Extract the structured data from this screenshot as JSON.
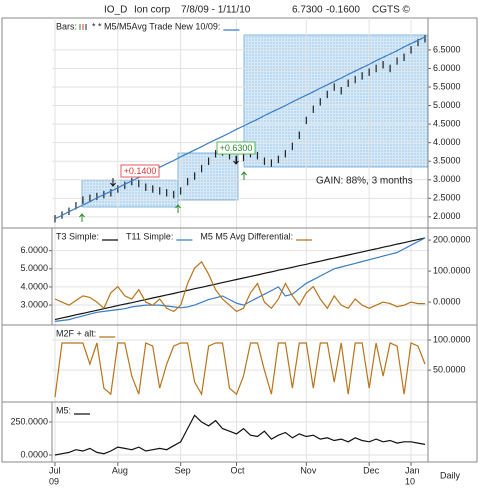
{
  "header": {
    "symbol": "IO_D",
    "name": "Ion corp",
    "dates": "7/8/09 - 1/11/10",
    "last": "6.7300",
    "change": "-0.1600",
    "source": "CGTS ©"
  },
  "chart_data": [
    {
      "type": "range-bar",
      "axis_side": "right",
      "grid": true,
      "annotations": [
        "+0.1400",
        "+0.6300",
        "GAIN: 88%, 3 months"
      ],
      "series": [
        {
          "name": "Bars:",
          "color": "#222",
          "high": [
            2.05,
            2.15,
            2.25,
            2.4,
            2.55,
            2.6,
            2.65,
            2.7,
            2.75,
            2.85,
            2.95,
            3.05,
            3.0,
            2.9,
            2.85,
            2.8,
            2.75,
            2.7,
            2.8,
            3.05,
            3.2,
            3.4,
            3.6,
            3.8,
            3.85,
            3.75,
            3.65,
            3.7,
            3.8,
            3.75,
            3.6,
            3.55,
            3.65,
            3.8,
            4.0,
            4.3,
            4.7,
            5.0,
            5.2,
            5.4,
            5.6,
            5.5,
            5.7,
            5.8,
            5.9,
            6.0,
            6.1,
            6.2,
            6.1,
            6.3,
            6.4,
            6.6,
            6.8,
            6.9
          ],
          "low": [
            1.85,
            1.95,
            2.05,
            2.2,
            2.35,
            2.4,
            2.45,
            2.5,
            2.55,
            2.65,
            2.75,
            2.85,
            2.8,
            2.7,
            2.65,
            2.6,
            2.55,
            2.5,
            2.6,
            2.85,
            3.0,
            3.2,
            3.4,
            3.6,
            3.65,
            3.55,
            3.45,
            3.5,
            3.6,
            3.55,
            3.4,
            3.35,
            3.45,
            3.6,
            3.8,
            4.1,
            4.5,
            4.8,
            5.0,
            5.2,
            5.4,
            5.3,
            5.5,
            5.6,
            5.7,
            5.8,
            5.9,
            6.0,
            5.9,
            6.1,
            6.2,
            6.4,
            6.6,
            6.7
          ]
        },
        {
          "name": "* * M5/M5Avg Trade New 10/09:",
          "color": "#3a7dc4",
          "values": [
            1.95,
            2.04,
            2.14,
            2.23,
            2.32,
            2.41,
            2.51,
            2.6,
            2.69,
            2.78,
            2.88,
            2.97,
            3.06,
            3.15,
            3.25,
            3.34,
            3.43,
            3.52,
            3.62,
            3.71,
            3.8,
            3.89,
            3.99,
            4.08,
            4.17,
            4.26,
            4.36,
            4.45,
            4.54,
            4.63,
            4.73,
            4.82,
            4.91,
            5.0,
            5.1,
            5.19,
            5.28,
            5.37,
            5.47,
            5.56,
            5.65,
            5.74,
            5.84,
            5.93,
            6.02,
            6.11,
            6.21,
            6.3,
            6.39,
            6.48,
            6.58,
            6.67,
            6.76,
            6.85
          ]
        }
      ],
      "ylim": [
        1.7,
        7.36
      ],
      "yticks": [
        {
          "value": 2,
          "label": "2.0000"
        },
        {
          "value": 2.5,
          "label": "2.5000"
        },
        {
          "value": 3,
          "label": "3.0000"
        },
        {
          "value": 3.5,
          "label": "3.5000"
        },
        {
          "value": 4,
          "label": "4.0000"
        },
        {
          "value": 4.5,
          "label": "4.5000"
        },
        {
          "value": 5,
          "label": "5.0000"
        },
        {
          "value": 5.5,
          "label": "5.5000"
        },
        {
          "value": 6,
          "label": "6.0000"
        },
        {
          "value": 6.5,
          "label": "6.5000"
        }
      ]
    },
    {
      "type": "line",
      "axis_side": "left",
      "grid": true,
      "series": [
        {
          "name": "T3 Simple:",
          "color": "#111",
          "values": [
            2.2,
            2.29,
            2.37,
            2.46,
            2.54,
            2.63,
            2.71,
            2.8,
            2.88,
            2.97,
            3.05,
            3.13,
            3.22,
            3.3,
            3.39,
            3.47,
            3.56,
            3.64,
            3.73,
            3.81,
            3.9,
            3.98,
            4.07,
            4.15,
            4.24,
            4.32,
            4.41,
            4.49,
            4.58,
            4.66,
            4.75,
            4.83,
            4.92,
            5.0,
            5.08,
            5.17,
            5.25,
            5.34,
            5.42,
            5.51,
            5.59,
            5.68,
            5.76,
            5.85,
            5.93,
            6.02,
            6.1,
            6.19,
            6.27,
            6.36,
            6.44,
            6.53,
            6.61,
            6.7
          ]
        },
        {
          "name": "T11 Simple:",
          "color": "#3a7dc4",
          "values": [
            2.1,
            2.15,
            2.2,
            2.3,
            2.4,
            2.5,
            2.6,
            2.65,
            2.7,
            2.75,
            2.8,
            2.9,
            2.95,
            3.0,
            3.0,
            3.0,
            2.95,
            2.9,
            2.85,
            2.9,
            3.0,
            3.15,
            3.3,
            3.4,
            3.5,
            3.3,
            3.1,
            3.0,
            3.2,
            3.4,
            3.6,
            3.8,
            4.0,
            3.5,
            3.6,
            3.9,
            4.2,
            4.4,
            4.6,
            4.8,
            5.0,
            5.1,
            5.2,
            5.3,
            5.4,
            5.5,
            5.6,
            5.7,
            5.8,
            5.9,
            6.1,
            6.3,
            6.5,
            6.7
          ]
        },
        {
          "name": "M5 M5 Avg Differential:",
          "color": "#b8741a",
          "axis": "y2",
          "values": [
            10,
            0,
            -10,
            5,
            20,
            15,
            0,
            -20,
            30,
            50,
            20,
            10,
            40,
            0,
            -10,
            10,
            -20,
            -30,
            -10,
            60,
            110,
            130,
            90,
            40,
            10,
            -10,
            -30,
            -20,
            30,
            60,
            0,
            -20,
            10,
            60,
            20,
            -10,
            30,
            50,
            10,
            -20,
            20,
            -10,
            -20,
            10,
            -10,
            -20,
            -10,
            0,
            -5,
            -15,
            -10,
            0,
            -5,
            -5
          ]
        }
      ],
      "ylim": [
        1.9,
        7.25
      ],
      "yticks": [
        {
          "value": 3,
          "label": "3.0000"
        },
        {
          "value": 4,
          "label": "4.0000"
        },
        {
          "value": 5,
          "label": "5.0000"
        },
        {
          "value": 6,
          "label": "6.0000"
        }
      ],
      "y2lim": [
        -74,
        239
      ],
      "y2ticks": [
        {
          "value": 0,
          "label": "0.0000"
        },
        {
          "value": 100,
          "label": "100.0000"
        },
        {
          "value": 200,
          "label": "200.0000"
        }
      ]
    },
    {
      "type": "line",
      "axis_side": "right",
      "grid": true,
      "series": [
        {
          "name": "M2F + alt:",
          "color": "#b8741a",
          "values": [
            5,
            95,
            95,
            95,
            95,
            60,
            95,
            20,
            10,
            95,
            95,
            40,
            10,
            95,
            90,
            20,
            60,
            90,
            95,
            95,
            30,
            10,
            90,
            95,
            95,
            20,
            10,
            40,
            95,
            95,
            50,
            10,
            95,
            95,
            20,
            95,
            95,
            20,
            95,
            95,
            30,
            95,
            10,
            95,
            95,
            20,
            95,
            40,
            95,
            90,
            10,
            95,
            90,
            60
          ]
        }
      ],
      "ylim": [
        -3,
        125
      ],
      "yticks": [
        {
          "value": 50,
          "label": "50.0000"
        },
        {
          "value": 100,
          "label": "100.0000"
        }
      ]
    },
    {
      "type": "line",
      "axis_side": "left",
      "grid": true,
      "series": [
        {
          "name": "M5:",
          "color": "#111",
          "values": [
            0,
            10,
            20,
            40,
            30,
            50,
            20,
            10,
            30,
            60,
            50,
            40,
            60,
            30,
            40,
            50,
            40,
            70,
            100,
            200,
            300,
            250,
            220,
            260,
            200,
            180,
            160,
            200,
            150,
            140,
            180,
            120,
            150,
            170,
            130,
            160,
            140,
            150,
            120,
            130,
            110,
            120,
            100,
            130,
            110,
            100,
            120,
            100,
            110,
            90,
            100,
            100,
            90,
            80
          ]
        }
      ],
      "ylim": [
        -53,
        401
      ],
      "yticks": [
        {
          "value": 0,
          "label": "0.0000"
        },
        {
          "value": 250,
          "label": "250.0000"
        }
      ],
      "categories": [
        "Jul",
        null,
        null,
        null,
        null,
        null,
        null,
        null,
        null,
        "Aug",
        null,
        null,
        null,
        null,
        null,
        null,
        null,
        null,
        "Sep",
        null,
        null,
        null,
        null,
        null,
        null,
        null,
        "Oct",
        null,
        null,
        null,
        null,
        null,
        null,
        null,
        null,
        null,
        "Nov",
        null,
        null,
        null,
        null,
        null,
        null,
        null,
        null,
        "Dec",
        null,
        null,
        null,
        null,
        null,
        "Jan",
        null,
        null
      ],
      "years": [
        "09",
        null,
        null,
        null,
        null,
        null,
        null,
        null,
        null,
        null,
        null,
        null,
        null,
        null,
        null,
        null,
        null,
        null,
        null,
        null,
        null,
        null,
        null,
        null,
        null,
        null,
        null,
        null,
        null,
        null,
        null,
        null,
        null,
        null,
        null,
        null,
        null,
        null,
        null,
        null,
        null,
        null,
        null,
        null,
        null,
        null,
        null,
        null,
        null,
        null,
        null,
        "10",
        null,
        null
      ],
      "period": "Daily"
    }
  ]
}
